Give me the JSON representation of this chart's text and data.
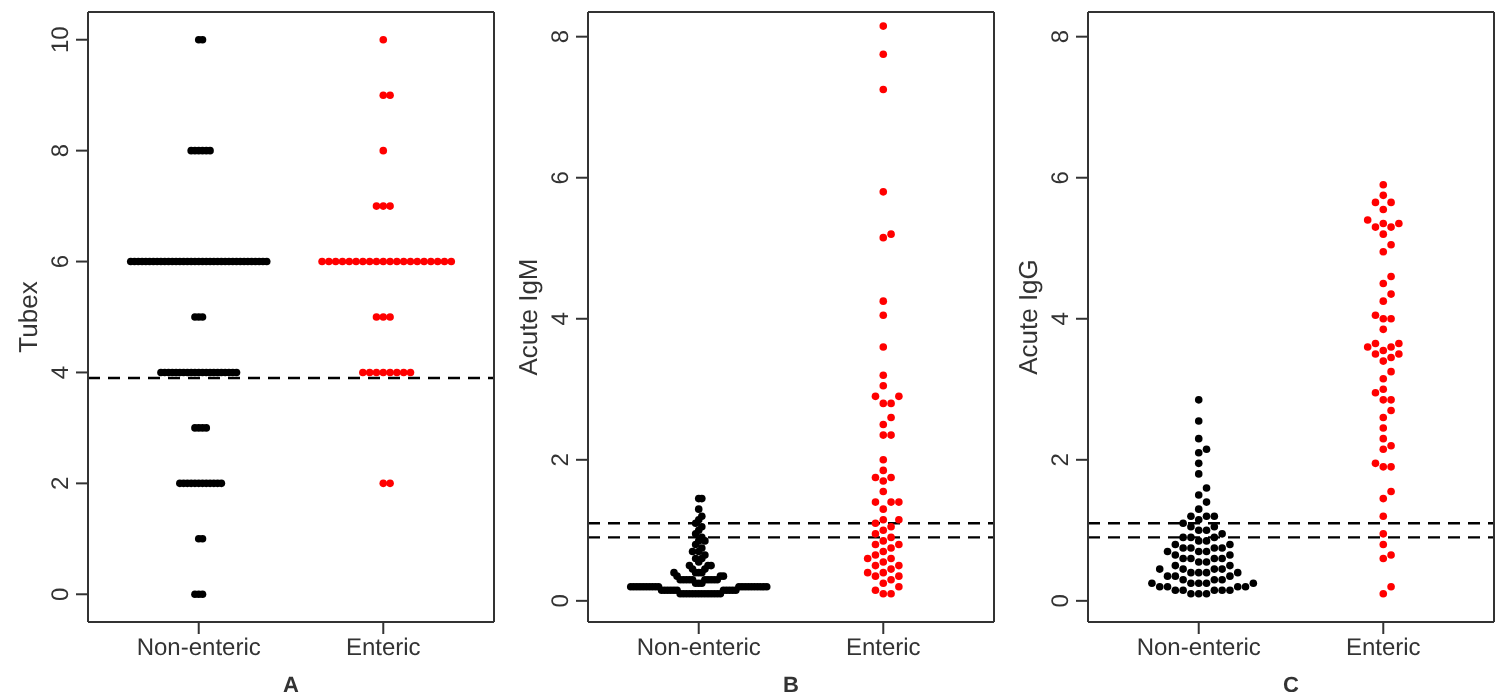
{
  "chart_data": [
    {
      "type": "scatter",
      "xlabel": "A",
      "ylabel": "Tubex",
      "categories": [
        "Non-enteric",
        "Enteric"
      ],
      "ylim": [
        -0.5,
        10.5
      ],
      "yticks": [
        0,
        2,
        4,
        6,
        8,
        10
      ],
      "marker": "circle",
      "series": [
        {
          "color": "#000000",
          "x": [
            "Non-enteric",
            "Non-enteric",
            "Non-enteric",
            "Non-enteric",
            "Non-enteric",
            "Non-enteric",
            "Non-enteric",
            "Non-enteric",
            "Non-enteric",
            "Non-enteric",
            "Non-enteric",
            "Non-enteric",
            "Non-enteric",
            "Non-enteric",
            "Non-enteric",
            "Non-enteric",
            "Non-enteric",
            "Non-enteric",
            "Non-enteric",
            "Non-enteric",
            "Non-enteric",
            "Non-enteric",
            "Non-enteric",
            "Non-enteric",
            "Non-enteric",
            "Non-enteric",
            "Non-enteric",
            "Non-enteric",
            "Non-enteric",
            "Non-enteric",
            "Non-enteric",
            "Non-enteric",
            "Non-enteric",
            "Non-enteric",
            "Non-enteric",
            "Non-enteric",
            "Non-enteric",
            "Non-enteric",
            "Non-enteric",
            "Non-enteric",
            "Non-enteric",
            "Non-enteric",
            "Non-enteric",
            "Non-enteric",
            "Non-enteric",
            "Non-enteric",
            "Non-enteric",
            "Non-enteric",
            "Non-enteric",
            "Non-enteric",
            "Non-enteric",
            "Non-enteric",
            "Non-enteric",
            "Non-enteric",
            "Non-enteric",
            "Non-enteric",
            "Non-enteric",
            "Non-enteric",
            "Non-enteric",
            "Non-enteric",
            "Non-enteric",
            "Non-enteric",
            "Non-enteric",
            "Non-enteric",
            "Non-enteric",
            "Non-enteric",
            "Non-enteric",
            "Non-enteric",
            "Non-enteric",
            "Non-enteric",
            "Non-enteric",
            "Non-enteric",
            "Non-enteric",
            "Non-enteric",
            "Non-enteric",
            "Non-enteric",
            "Non-enteric",
            "Non-enteric",
            "Non-enteric",
            "Non-enteric",
            "Non-enteric",
            "Non-enteric",
            "Non-enteric",
            "Non-enteric",
            "Non-enteric",
            "Non-enteric",
            "Non-enteric",
            "Non-enteric",
            "Non-enteric",
            "Non-enteric"
          ],
          "values": [
            10,
            10,
            8,
            8,
            8,
            8,
            8,
            8,
            6,
            6,
            6,
            6,
            6,
            6,
            6,
            6,
            6,
            6,
            6,
            6,
            6,
            6,
            6,
            6,
            6,
            6,
            6,
            6,
            6,
            6,
            6,
            6,
            6,
            6,
            6,
            6,
            6,
            6,
            6,
            6,
            6,
            6,
            6,
            6,
            6,
            5,
            5,
            5,
            4,
            4,
            4,
            4,
            4,
            4,
            4,
            4,
            4,
            4,
            4,
            4,
            4,
            4,
            4,
            4,
            4,
            4,
            4,
            4,
            4,
            3,
            3,
            3,
            3,
            2,
            2,
            2,
            2,
            2,
            2,
            2,
            2,
            2,
            2,
            2,
            2,
            1,
            1,
            0,
            0,
            0
          ]
        },
        {
          "color": "#ff0000",
          "x": [
            "Enteric",
            "Enteric",
            "Enteric",
            "Enteric",
            "Enteric",
            "Enteric",
            "Enteric",
            "Enteric",
            "Enteric",
            "Enteric",
            "Enteric",
            "Enteric",
            "Enteric",
            "Enteric",
            "Enteric",
            "Enteric",
            "Enteric",
            "Enteric",
            "Enteric",
            "Enteric",
            "Enteric",
            "Enteric",
            "Enteric",
            "Enteric",
            "Enteric",
            "Enteric",
            "Enteric",
            "Enteric",
            "Enteric",
            "Enteric",
            "Enteric",
            "Enteric",
            "Enteric",
            "Enteric",
            "Enteric",
            "Enteric",
            "Enteric",
            "Enteric",
            "Enteric",
            "Enteric"
          ],
          "values": [
            10,
            9,
            9,
            8,
            7,
            7,
            7,
            6,
            6,
            6,
            6,
            6,
            6,
            6,
            6,
            6,
            6,
            6,
            6,
            6,
            6,
            6,
            6,
            6,
            6,
            6,
            6,
            5,
            5,
            5,
            4,
            4,
            4,
            4,
            4,
            4,
            4,
            4,
            2,
            2
          ]
        }
      ],
      "ref_lines": [
        {
          "axis": "y",
          "value": 3.9,
          "line_style": "dashed",
          "color": "#000000"
        }
      ]
    },
    {
      "type": "scatter",
      "xlabel": "B",
      "ylabel": "Acute IgM",
      "categories": [
        "Non-enteric",
        "Enteric"
      ],
      "ylim": [
        -0.3,
        8.35
      ],
      "yticks": [
        0,
        2,
        4,
        6,
        8
      ],
      "marker": "circle",
      "series": [
        {
          "color": "#000000",
          "x": [
            "Non-enteric",
            "Non-enteric",
            "Non-enteric",
            "Non-enteric",
            "Non-enteric",
            "Non-enteric",
            "Non-enteric",
            "Non-enteric",
            "Non-enteric",
            "Non-enteric",
            "Non-enteric",
            "Non-enteric",
            "Non-enteric",
            "Non-enteric",
            "Non-enteric",
            "Non-enteric",
            "Non-enteric",
            "Non-enteric",
            "Non-enteric",
            "Non-enteric",
            "Non-enteric",
            "Non-enteric",
            "Non-enteric",
            "Non-enteric",
            "Non-enteric",
            "Non-enteric",
            "Non-enteric",
            "Non-enteric",
            "Non-enteric",
            "Non-enteric",
            "Non-enteric",
            "Non-enteric",
            "Non-enteric",
            "Non-enteric",
            "Non-enteric",
            "Non-enteric",
            "Non-enteric",
            "Non-enteric",
            "Non-enteric",
            "Non-enteric",
            "Non-enteric",
            "Non-enteric",
            "Non-enteric",
            "Non-enteric",
            "Non-enteric",
            "Non-enteric",
            "Non-enteric",
            "Non-enteric",
            "Non-enteric",
            "Non-enteric",
            "Non-enteric",
            "Non-enteric",
            "Non-enteric",
            "Non-enteric",
            "Non-enteric",
            "Non-enteric",
            "Non-enteric",
            "Non-enteric",
            "Non-enteric",
            "Non-enteric",
            "Non-enteric",
            "Non-enteric",
            "Non-enteric",
            "Non-enteric",
            "Non-enteric",
            "Non-enteric",
            "Non-enteric",
            "Non-enteric",
            "Non-enteric",
            "Non-enteric",
            "Non-enteric",
            "Non-enteric",
            "Non-enteric",
            "Non-enteric",
            "Non-enteric",
            "Non-enteric",
            "Non-enteric",
            "Non-enteric",
            "Non-enteric",
            "Non-enteric",
            "Non-enteric",
            "Non-enteric",
            "Non-enteric",
            "Non-enteric",
            "Non-enteric",
            "Non-enteric",
            "Non-enteric",
            "Non-enteric",
            "Non-enteric",
            "Non-enteric"
          ],
          "values": [
            1.45,
            1.45,
            1.3,
            1.2,
            1.15,
            1.1,
            1.05,
            1.0,
            0.95,
            0.9,
            0.85,
            0.85,
            0.8,
            0.75,
            0.7,
            0.7,
            0.65,
            0.6,
            0.6,
            0.55,
            0.5,
            0.5,
            0.5,
            0.45,
            0.45,
            0.4,
            0.4,
            0.4,
            0.4,
            0.35,
            0.35,
            0.35,
            0.3,
            0.3,
            0.3,
            0.3,
            0.3,
            0.3,
            0.3,
            0.3,
            0.3,
            0.3,
            0.25,
            0.25,
            0.25,
            0.2,
            0.2,
            0.2,
            0.2,
            0.2,
            0.2,
            0.2,
            0.2,
            0.2,
            0.2,
            0.2,
            0.2,
            0.2,
            0.2,
            0.2,
            0.2,
            0.2,
            0.2,
            0.2,
            0.2,
            0.15,
            0.15,
            0.15,
            0.15,
            0.15,
            0.15,
            0.15,
            0.15,
            0.15,
            0.15,
            0.15,
            0.1,
            0.1,
            0.1,
            0.1,
            0.1,
            0.1,
            0.1,
            0.1,
            0.1,
            0.1,
            0.1,
            0.1,
            0.1,
            0.1
          ]
        },
        {
          "color": "#ff0000",
          "x": [
            "Enteric",
            "Enteric",
            "Enteric",
            "Enteric",
            "Enteric",
            "Enteric",
            "Enteric",
            "Enteric",
            "Enteric",
            "Enteric",
            "Enteric",
            "Enteric",
            "Enteric",
            "Enteric",
            "Enteric",
            "Enteric",
            "Enteric",
            "Enteric",
            "Enteric",
            "Enteric",
            "Enteric",
            "Enteric",
            "Enteric",
            "Enteric",
            "Enteric",
            "Enteric",
            "Enteric",
            "Enteric",
            "Enteric",
            "Enteric",
            "Enteric",
            "Enteric",
            "Enteric",
            "Enteric",
            "Enteric",
            "Enteric",
            "Enteric",
            "Enteric",
            "Enteric",
            "Enteric",
            "Enteric",
            "Enteric",
            "Enteric",
            "Enteric",
            "Enteric",
            "Enteric",
            "Enteric",
            "Enteric",
            "Enteric",
            "Enteric",
            "Enteric",
            "Enteric",
            "Enteric",
            "Enteric",
            "Enteric",
            "Enteric",
            "Enteric",
            "Enteric"
          ],
          "values": [
            8.15,
            7.75,
            7.25,
            5.8,
            5.2,
            5.15,
            4.25,
            4.05,
            3.6,
            3.2,
            3.05,
            2.9,
            2.9,
            2.8,
            2.8,
            2.6,
            2.5,
            2.35,
            2.35,
            2.0,
            1.85,
            1.75,
            1.75,
            1.7,
            1.55,
            1.4,
            1.4,
            1.4,
            1.3,
            1.15,
            1.15,
            1.1,
            1.05,
            1.0,
            0.95,
            0.9,
            0.85,
            0.8,
            0.8,
            0.75,
            0.7,
            0.65,
            0.6,
            0.6,
            0.55,
            0.5,
            0.5,
            0.45,
            0.4,
            0.4,
            0.35,
            0.35,
            0.3,
            0.25,
            0.2,
            0.15,
            0.1,
            0.1
          ]
        }
      ],
      "ref_lines": [
        {
          "axis": "y",
          "value": 0.9,
          "line_style": "dashed",
          "color": "#000000"
        },
        {
          "axis": "y",
          "value": 1.1,
          "line_style": "dashed",
          "color": "#000000"
        }
      ]
    },
    {
      "type": "scatter",
      "xlabel": "C",
      "ylabel": "Acute IgG",
      "categories": [
        "Non-enteric",
        "Enteric"
      ],
      "ylim": [
        -0.3,
        8.35
      ],
      "yticks": [
        0,
        2,
        4,
        6,
        8
      ],
      "marker": "circle",
      "series": [
        {
          "color": "#000000",
          "x": [
            "Non-enteric",
            "Non-enteric",
            "Non-enteric",
            "Non-enteric",
            "Non-enteric",
            "Non-enteric",
            "Non-enteric",
            "Non-enteric",
            "Non-enteric",
            "Non-enteric",
            "Non-enteric",
            "Non-enteric",
            "Non-enteric",
            "Non-enteric",
            "Non-enteric",
            "Non-enteric",
            "Non-enteric",
            "Non-enteric",
            "Non-enteric",
            "Non-enteric",
            "Non-enteric",
            "Non-enteric",
            "Non-enteric",
            "Non-enteric",
            "Non-enteric",
            "Non-enteric",
            "Non-enteric",
            "Non-enteric",
            "Non-enteric",
            "Non-enteric",
            "Non-enteric",
            "Non-enteric",
            "Non-enteric",
            "Non-enteric",
            "Non-enteric",
            "Non-enteric",
            "Non-enteric",
            "Non-enteric",
            "Non-enteric",
            "Non-enteric",
            "Non-enteric",
            "Non-enteric",
            "Non-enteric",
            "Non-enteric",
            "Non-enteric",
            "Non-enteric",
            "Non-enteric",
            "Non-enteric",
            "Non-enteric",
            "Non-enteric",
            "Non-enteric",
            "Non-enteric",
            "Non-enteric",
            "Non-enteric",
            "Non-enteric",
            "Non-enteric",
            "Non-enteric",
            "Non-enteric",
            "Non-enteric",
            "Non-enteric",
            "Non-enteric",
            "Non-enteric",
            "Non-enteric",
            "Non-enteric",
            "Non-enteric",
            "Non-enteric",
            "Non-enteric",
            "Non-enteric",
            "Non-enteric",
            "Non-enteric",
            "Non-enteric",
            "Non-enteric",
            "Non-enteric",
            "Non-enteric",
            "Non-enteric",
            "Non-enteric"
          ],
          "values": [
            2.85,
            2.55,
            2.3,
            2.15,
            2.1,
            1.95,
            1.8,
            1.6,
            1.5,
            1.4,
            1.3,
            1.2,
            1.2,
            1.2,
            1.15,
            1.1,
            1.05,
            1.05,
            1.0,
            1.0,
            0.95,
            0.9,
            0.9,
            0.9,
            0.85,
            0.85,
            0.8,
            0.8,
            0.75,
            0.75,
            0.75,
            0.75,
            0.7,
            0.7,
            0.7,
            0.65,
            0.65,
            0.6,
            0.6,
            0.6,
            0.6,
            0.55,
            0.55,
            0.5,
            0.5,
            0.45,
            0.45,
            0.45,
            0.45,
            0.4,
            0.4,
            0.4,
            0.4,
            0.35,
            0.35,
            0.35,
            0.3,
            0.3,
            0.3,
            0.25,
            0.25,
            0.25,
            0.25,
            0.25,
            0.2,
            0.2,
            0.2,
            0.2,
            0.15,
            0.15,
            0.15,
            0.15,
            0.15,
            0.1,
            0.1,
            0.1
          ]
        },
        {
          "color": "#ff0000",
          "x": [
            "Enteric",
            "Enteric",
            "Enteric",
            "Enteric",
            "Enteric",
            "Enteric",
            "Enteric",
            "Enteric",
            "Enteric",
            "Enteric",
            "Enteric",
            "Enteric",
            "Enteric",
            "Enteric",
            "Enteric",
            "Enteric",
            "Enteric",
            "Enteric",
            "Enteric",
            "Enteric",
            "Enteric",
            "Enteric",
            "Enteric",
            "Enteric",
            "Enteric",
            "Enteric",
            "Enteric",
            "Enteric",
            "Enteric",
            "Enteric",
            "Enteric",
            "Enteric",
            "Enteric",
            "Enteric",
            "Enteric",
            "Enteric",
            "Enteric",
            "Enteric",
            "Enteric",
            "Enteric",
            "Enteric",
            "Enteric",
            "Enteric",
            "Enteric",
            "Enteric",
            "Enteric",
            "Enteric",
            "Enteric",
            "Enteric",
            "Enteric",
            "Enteric",
            "Enteric",
            "Enteric",
            "Enteric"
          ],
          "values": [
            5.9,
            5.75,
            5.65,
            5.65,
            5.55,
            5.4,
            5.35,
            5.35,
            5.3,
            5.3,
            5.2,
            5.05,
            4.95,
            4.6,
            4.5,
            4.35,
            4.25,
            4.05,
            4.0,
            4.0,
            3.85,
            3.65,
            3.65,
            3.6,
            3.6,
            3.55,
            3.5,
            3.5,
            3.45,
            3.4,
            3.25,
            3.15,
            3.0,
            2.95,
            2.85,
            2.85,
            2.7,
            2.6,
            2.45,
            2.3,
            2.2,
            2.15,
            1.95,
            1.9,
            1.9,
            1.55,
            1.45,
            1.2,
            0.95,
            0.8,
            0.65,
            0.6,
            0.2,
            0.1
          ]
        }
      ],
      "ref_lines": [
        {
          "axis": "y",
          "value": 0.9,
          "line_style": "dashed",
          "color": "#000000"
        },
        {
          "axis": "y",
          "value": 1.1,
          "line_style": "dashed",
          "color": "#000000"
        }
      ]
    }
  ]
}
